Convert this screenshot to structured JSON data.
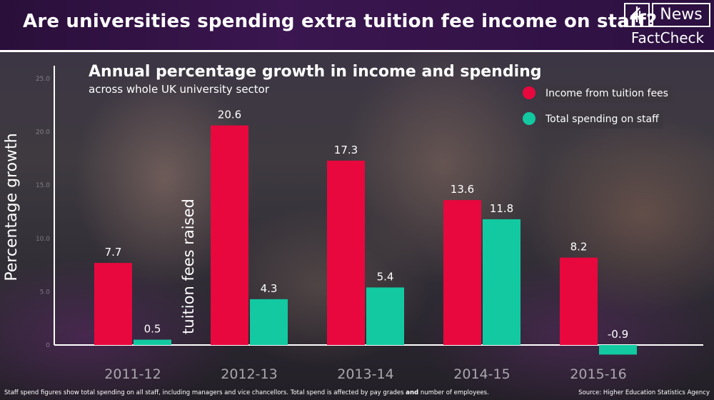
{
  "header": {
    "headline": "Are universities spending extra tuition fee income on staff?",
    "logo_news": "News",
    "logo_factcheck": "FactCheck",
    "logo_icon": "channel-4-icon"
  },
  "colors": {
    "income": "#e8083e",
    "spending": "#12c9a1"
  },
  "annotation": "tuition fees raised",
  "chart_data": {
    "type": "bar",
    "title": "Annual percentage growth in income and spending",
    "subtitle": "across whole UK university sector",
    "xlabel": "",
    "ylabel": "Percentage growth",
    "categories": [
      "2011-12",
      "2012-13",
      "2013-14",
      "2014-15",
      "2015-16"
    ],
    "series": [
      {
        "name": "Income from tuition fees",
        "values": [
          7.7,
          20.6,
          17.3,
          13.6,
          8.2
        ],
        "labels": [
          "7.7",
          "20.6",
          "17.3",
          "13.6",
          "8.2"
        ]
      },
      {
        "name": "Total spending on staff",
        "values": [
          0.5,
          4.3,
          5.4,
          11.8,
          -0.9
        ],
        "labels": [
          "0.5",
          "4.3",
          "5.4",
          "11.8",
          "-0.9"
        ]
      }
    ],
    "ylim": [
      0,
      25
    ],
    "yticks": [
      0,
      5,
      10,
      15,
      20,
      25
    ],
    "ytick_labels": [
      "0",
      "5.0",
      "10.0",
      "15.0",
      "20.0",
      "25.0"
    ],
    "grid": false,
    "legend": "top-right"
  },
  "footnote": {
    "text_before": "Staff spend figures show total spending on all staff, including managers and vice chancellors. Total spend is affected by pay grades ",
    "text_bold": "and",
    "text_after": " number of employees."
  },
  "source": "Source: Higher Education Statistics Agency"
}
